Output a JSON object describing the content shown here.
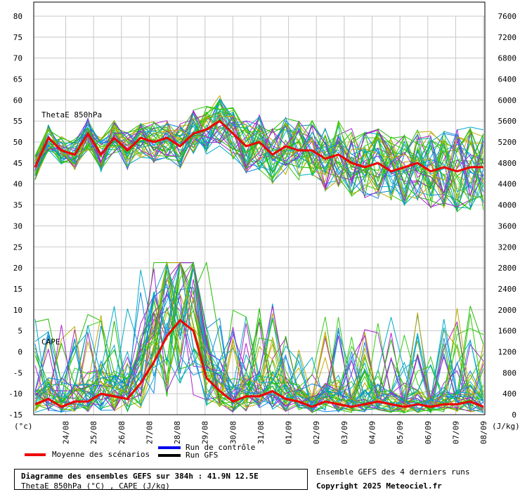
{
  "chart_data": {
    "type": "line",
    "left_axis_unit": "(°c)",
    "right_axis_unit": "(J/kg)",
    "left_ticks": [
      80,
      75,
      70,
      65,
      60,
      55,
      50,
      45,
      40,
      35,
      30,
      25,
      20,
      15,
      10,
      5,
      0,
      -5,
      -10,
      -15
    ],
    "right_ticks": [
      7600,
      7200,
      6800,
      6400,
      6000,
      5600,
      5200,
      4800,
      4400,
      4000,
      3600,
      3200,
      2800,
      2400,
      2000,
      1600,
      1200,
      800,
      400,
      0
    ],
    "ylim_left": [
      -15,
      80
    ],
    "ylim_right": [
      0,
      7600
    ],
    "x_labels": [
      "24/08",
      "25/08",
      "26/08",
      "27/08",
      "28/08",
      "29/08",
      "30/08",
      "31/08",
      "01/09",
      "02/09",
      "03/09",
      "04/09",
      "05/09",
      "06/09",
      "07/09",
      "08/09"
    ],
    "series_labels": {
      "thetae": "ThetaE 850hPa",
      "cape": "CAPE"
    },
    "thetae_mean": [
      44,
      51,
      48,
      47,
      52,
      47,
      51,
      48,
      51,
      50,
      51,
      49,
      52,
      53,
      55,
      52,
      49,
      50,
      47,
      49,
      48,
      48,
      46,
      47,
      45,
      44,
      45,
      43,
      44,
      45,
      43,
      44,
      43,
      44,
      44
    ],
    "cape_mean_jkg": [
      200,
      300,
      150,
      250,
      250,
      400,
      350,
      300,
      600,
      1000,
      1500,
      1800,
      1600,
      700,
      450,
      250,
      350,
      350,
      450,
      300,
      250,
      150,
      250,
      200,
      150,
      200,
      250,
      200,
      150,
      200,
      150,
      200,
      200,
      250,
      150
    ],
    "grid": true,
    "colors": {
      "mean": "#ee0000",
      "control": "#0000ee",
      "gfs": "#000000",
      "members": [
        "#22bb00",
        "#33cc11",
        "#aa22cc",
        "#bbaa00",
        "#00aacc",
        "#1188dd"
      ]
    }
  },
  "legend": {
    "mean_label": "Moyenne des scénarios",
    "control_label": "Run de contrôle",
    "gfs_label": "Run GFS"
  },
  "info": {
    "title": "Diagramme des ensembles GEFS sur 384h : 41.9N 12.5E",
    "subtitle": "ThetaE 850hPa (°C) , CAPE (J/kg)",
    "note": "Ensemble GEFS des 4 derniers runs",
    "copyright": "Copyright 2025 Meteociel.fr"
  }
}
